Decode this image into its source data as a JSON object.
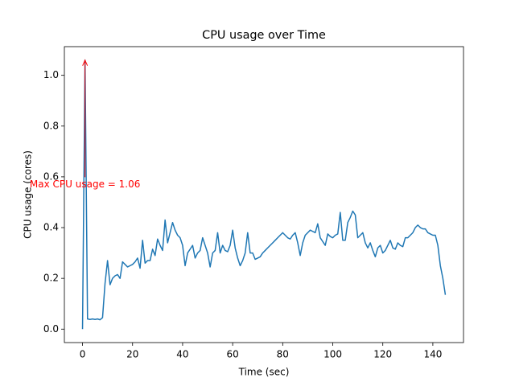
{
  "chart_data": {
    "type": "line",
    "title": "CPU usage over Time",
    "xlabel": "Time (sec)",
    "ylabel": "CPU usage (cores)",
    "x": [
      0,
      1,
      2,
      3,
      4,
      5,
      6,
      7,
      8,
      9,
      10,
      11,
      12,
      13,
      14,
      15,
      16,
      17,
      18,
      19,
      20,
      21,
      22,
      23,
      24,
      25,
      26,
      27,
      28,
      29,
      30,
      31,
      32,
      33,
      34,
      35,
      36,
      37,
      38,
      39,
      40,
      41,
      42,
      43,
      44,
      45,
      46,
      47,
      48,
      49,
      50,
      51,
      52,
      53,
      54,
      55,
      56,
      57,
      58,
      59,
      60,
      61,
      62,
      63,
      64,
      65,
      66,
      67,
      68,
      69,
      70,
      71,
      72,
      73,
      74,
      75,
      76,
      77,
      78,
      79,
      80,
      81,
      82,
      83,
      84,
      85,
      86,
      87,
      88,
      89,
      90,
      91,
      92,
      93,
      94,
      95,
      96,
      97,
      98,
      99,
      100,
      101,
      102,
      103,
      104,
      105,
      106,
      107,
      108,
      109,
      110,
      111,
      112,
      113,
      114,
      115,
      116,
      117,
      118,
      119,
      120,
      121,
      122,
      123,
      124,
      125,
      126,
      127,
      128,
      129,
      130,
      131,
      132,
      133,
      134,
      135,
      136,
      137,
      138,
      139,
      140,
      141,
      142,
      143,
      144,
      145
    ],
    "series": [
      {
        "name": "CPU usage",
        "color": "#1f77b4",
        "values": [
          0,
          1.06,
          0.04,
          0.038,
          0.04,
          0.038,
          0.04,
          0.037,
          0.045,
          0.18,
          0.27,
          0.175,
          0.2,
          0.21,
          0.215,
          0.2,
          0.265,
          0.255,
          0.245,
          0.25,
          0.255,
          0.265,
          0.28,
          0.24,
          0.35,
          0.26,
          0.27,
          0.27,
          0.315,
          0.29,
          0.355,
          0.33,
          0.31,
          0.43,
          0.34,
          0.38,
          0.42,
          0.39,
          0.37,
          0.36,
          0.33,
          0.25,
          0.3,
          0.315,
          0.33,
          0.28,
          0.3,
          0.31,
          0.36,
          0.33,
          0.3,
          0.245,
          0.3,
          0.31,
          0.38,
          0.3,
          0.33,
          0.31,
          0.305,
          0.33,
          0.39,
          0.32,
          0.28,
          0.25,
          0.27,
          0.3,
          0.38,
          0.3,
          0.3,
          0.275,
          0.28,
          0.285,
          0.3,
          0.31,
          0.32,
          0.33,
          0.34,
          0.35,
          0.36,
          0.37,
          0.38,
          0.37,
          0.36,
          0.355,
          0.37,
          0.38,
          0.34,
          0.29,
          0.34,
          0.37,
          0.38,
          0.39,
          0.385,
          0.38,
          0.415,
          0.36,
          0.345,
          0.33,
          0.375,
          0.365,
          0.36,
          0.37,
          0.375,
          0.46,
          0.35,
          0.35,
          0.42,
          0.44,
          0.465,
          0.45,
          0.36,
          0.37,
          0.38,
          0.34,
          0.32,
          0.34,
          0.31,
          0.285,
          0.32,
          0.33,
          0.3,
          0.31,
          0.33,
          0.35,
          0.32,
          0.315,
          0.34,
          0.33,
          0.325,
          0.36,
          0.36,
          0.37,
          0.38,
          0.4,
          0.41,
          0.4,
          0.395,
          0.395,
          0.38,
          0.375,
          0.37,
          0.37,
          0.33,
          0.25,
          0.2,
          0.135
        ]
      }
    ],
    "xlim": [
      -7.25,
      152.25
    ],
    "ylim": [
      -0.053,
      1.113
    ],
    "xticks": [
      0,
      20,
      40,
      60,
      80,
      100,
      120,
      140
    ],
    "yticks": [
      {
        "value": 0,
        "label": "0.0"
      },
      0.2,
      0.4,
      0.6,
      0.8,
      {
        "value": 1,
        "label": "1.0"
      }
    ],
    "annotation": {
      "text": "Max CPU usage = 1.06",
      "xy": [
        1,
        1.06
      ],
      "xytext": [
        1,
        0.57
      ],
      "color": "red"
    }
  }
}
